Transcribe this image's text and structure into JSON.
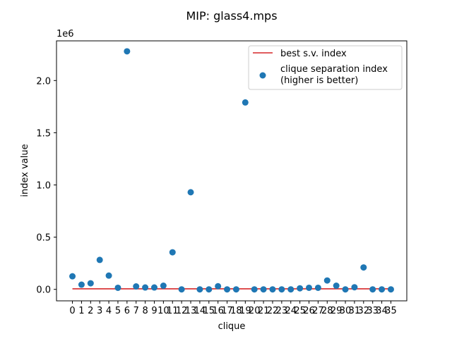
{
  "chart_data": {
    "type": "scatter",
    "title": "MIP: glass4.mps",
    "xlabel": "clique",
    "ylabel": "index value",
    "offset_label": "1e6",
    "xlim": [
      -1.75,
      36.75
    ],
    "ylim": [
      -0.11,
      2.38
    ],
    "y_ticks": [
      0.0,
      0.5,
      1.0,
      1.5,
      2.0
    ],
    "y_tick_labels": [
      "0.0",
      "0.5",
      "1.0",
      "1.5",
      "2.0"
    ],
    "x_tick_labels": [
      "0",
      "1",
      "2",
      "3",
      "4",
      "5",
      "6",
      "7",
      "8",
      "9",
      "10",
      "11",
      "12",
      "13",
      "14",
      "15",
      "16",
      "17",
      "18",
      "19",
      "20",
      "21",
      "22",
      "23",
      "24",
      "25",
      "26",
      "27",
      "28",
      "29",
      "30",
      "31",
      "32",
      "33",
      "34",
      "35"
    ],
    "grid": false,
    "legend_position": "top-right",
    "series": [
      {
        "name": "best s.v. index",
        "type": "line",
        "color": "#d62728",
        "x": [
          0,
          35
        ],
        "y": [
          0.005,
          0.005
        ]
      },
      {
        "name": "clique separation index",
        "name_line2": "(higher is better)",
        "type": "scatter",
        "color": "#1f77b4",
        "x": [
          0,
          1,
          2,
          3,
          4,
          5,
          6,
          7,
          8,
          9,
          10,
          11,
          12,
          13,
          14,
          15,
          16,
          17,
          18,
          19,
          20,
          21,
          22,
          23,
          24,
          25,
          26,
          27,
          28,
          29,
          30,
          31,
          32,
          33,
          34,
          35
        ],
        "y": [
          0.125,
          0.045,
          0.058,
          0.282,
          0.132,
          0.015,
          2.28,
          0.028,
          0.018,
          0.018,
          0.035,
          0.355,
          0.0,
          0.93,
          0.0,
          0.0,
          0.03,
          0.0,
          0.0,
          1.79,
          0.0,
          0.0,
          0.0,
          0.0,
          0.0,
          0.01,
          0.015,
          0.015,
          0.085,
          0.035,
          0.0,
          0.02,
          0.21,
          0.0,
          0.0,
          0.0
        ]
      }
    ]
  }
}
